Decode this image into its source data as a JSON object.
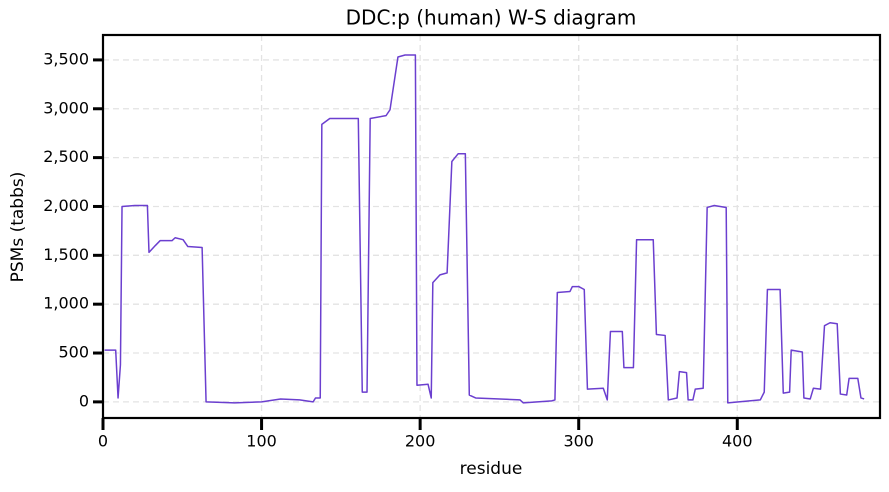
{
  "chart_data": {
    "type": "line",
    "title": "DDC:p (human) W-S diagram",
    "x_label": "residue",
    "y_label": "PSMs (tabbs)",
    "color": "#6b3fcf",
    "grid": true,
    "xlim": [
      0,
      490
    ],
    "ylim": [
      -165,
      3755
    ],
    "xticks": [
      0,
      100,
      200,
      300,
      400
    ],
    "yticks": [
      0,
      {
        "value": 500,
        "label": "500"
      },
      {
        "value": 1000,
        "label": "1,000"
      },
      {
        "value": 1500,
        "label": "1,500"
      },
      {
        "value": 2000,
        "label": "2,000"
      },
      {
        "value": 2500,
        "label": "2,500"
      },
      {
        "value": 3000,
        "label": "3,000"
      },
      {
        "value": 3500,
        "label": "3,500"
      }
    ],
    "x": [
      1,
      8,
      9.5,
      11,
      12,
      20,
      28,
      29,
      33,
      36,
      43.5,
      45.5,
      50.5,
      53.5,
      62.5,
      65,
      83,
      100,
      112,
      124,
      132.5,
      134,
      137,
      138,
      143,
      161,
      163.5,
      166.5,
      168.5,
      178.5,
      181,
      186,
      190.5,
      197,
      198,
      205,
      207,
      208,
      212.5,
      217,
      220,
      224,
      228.5,
      231,
      235,
      263,
      265,
      283,
      285,
      286.5,
      294.5,
      296,
      300,
      303.5,
      305.5,
      315.5,
      318,
      320,
      327.5,
      328.5,
      334.5,
      336.5,
      347,
      349,
      354.5,
      356.5,
      362,
      363.5,
      368,
      369,
      372,
      373.5,
      378.5,
      381,
      385.5,
      393,
      394,
      414.5,
      417,
      419,
      427,
      429,
      433,
      434,
      441,
      442,
      446,
      448,
      452.5,
      455,
      458.5,
      463,
      465,
      469,
      470.5,
      476,
      478,
      480
    ],
    "values": [
      530,
      530,
      40,
      380,
      2000,
      2010,
      2010,
      1530,
      1600,
      1650,
      1650,
      1680,
      1660,
      1590,
      1580,
      0,
      -10,
      0,
      30,
      20,
      0,
      40,
      40,
      2840,
      2900,
      2900,
      100,
      100,
      2900,
      2930,
      2990,
      3530,
      3550,
      3550,
      170,
      180,
      40,
      1220,
      1300,
      1320,
      2460,
      2540,
      2540,
      70,
      40,
      20,
      -10,
      10,
      20,
      1120,
      1130,
      1180,
      1180,
      1150,
      130,
      140,
      20,
      720,
      720,
      350,
      350,
      1660,
      1660,
      690,
      680,
      20,
      40,
      310,
      300,
      20,
      20,
      130,
      140,
      1990,
      2010,
      1990,
      -10,
      20,
      100,
      1150,
      1150,
      90,
      100,
      530,
      510,
      40,
      30,
      140,
      130,
      780,
      810,
      800,
      80,
      70,
      240,
      240,
      40,
      30
    ]
  }
}
